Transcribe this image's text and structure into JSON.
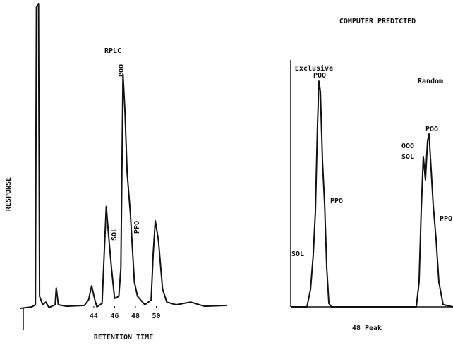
{
  "chart_data": [
    {
      "type": "line",
      "title": "RPLC",
      "x_label": "RETENTION TIME",
      "y_label": "RESPONSE",
      "x": [
        36.9,
        38.05,
        38.4,
        38.5,
        38.7,
        38.8,
        39.1,
        39.4,
        39.7,
        40.3,
        40.4,
        40.6,
        41.4,
        43.1,
        43.5,
        43.8,
        44.1,
        44.3,
        44.8,
        45.0,
        45.2,
        45.4,
        45.7,
        46.0,
        46.4,
        46.6,
        46.8,
        47.0,
        47.2,
        47.5,
        47.9,
        48.2,
        48.9,
        49.5,
        49.7,
        49.9,
        50.2,
        50.6,
        51.0,
        51.9,
        53.3,
        54.6,
        56.8
      ],
      "values": [
        -1.2,
        -0.7,
        0,
        98.8,
        100,
        2.8,
        0,
        0.9,
        -0.9,
        0,
        5.6,
        0,
        -0.5,
        -0.2,
        1.6,
        6.3,
        1.6,
        -0.7,
        0.5,
        16.9,
        32.6,
        23.9,
        12.2,
        2.1,
        2.8,
        12.2,
        76.6,
        63.7,
        43.8,
        30.9,
        7.5,
        2.8,
        0,
        1.6,
        16.9,
        27.9,
        21.5,
        5.2,
        0.9,
        0,
        0.9,
        -0.5,
        -0.2
      ],
      "color": "#111111",
      "xlim": [
        36.9,
        56.8
      ],
      "ylim": [
        0,
        100
      ],
      "xticks": [
        44,
        46,
        48,
        50
      ],
      "annotations": [
        "POO",
        "SOL",
        "PPO"
      ]
    },
    {
      "type": "line",
      "title": "COMPUTER PREDICTED",
      "x_label": "48 Peak",
      "x": [
        0,
        10,
        12.2,
        13.9,
        15.2,
        16.5,
        17.4,
        18.3,
        19.6,
        20.9,
        22.2,
        23.5,
        25.2,
        77.4,
        79.1,
        80.4,
        81.7,
        83.0,
        84.3,
        85.2,
        86.5,
        87.8,
        89.6,
        91.3,
        93.9,
        100
      ],
      "values": [
        0,
        0,
        7.1,
        21.4,
        38.6,
        72.9,
        91.4,
        87.1,
        58.6,
        41.4,
        15.7,
        1.4,
        0,
        0,
        10,
        38.6,
        60.9,
        51.4,
        67.1,
        70,
        55.7,
        41.4,
        27.1,
        10,
        0.9,
        0
      ],
      "color": "#111111",
      "xlim": [
        0,
        100
      ],
      "ylim": [
        0,
        100
      ],
      "annotations": [
        "Exclusive",
        "Random",
        "POO",
        "PPO",
        "SOL",
        "POO",
        "OOO",
        "SOL",
        "PPO"
      ]
    }
  ]
}
